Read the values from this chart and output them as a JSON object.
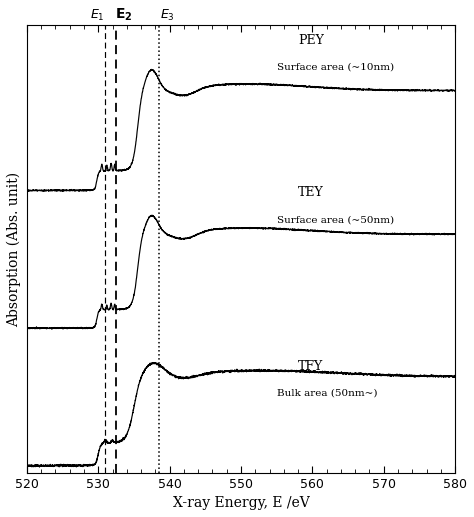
{
  "title": "",
  "xlabel": "X-ray Energy, E /eV",
  "ylabel": "Absorption (Abs. unit)",
  "xlim": [
    520,
    580
  ],
  "x_ticks": [
    520,
    530,
    540,
    550,
    560,
    570,
    580
  ],
  "E1": 531.0,
  "E2": 532.5,
  "E3": 538.5,
  "labels": [
    [
      "PEY",
      "Surface area (~10nm)"
    ],
    [
      "TEY",
      "Surface area (~50nm)"
    ],
    [
      "TFY",
      "Bulk area (50nm~)"
    ]
  ],
  "offsets": [
    2.0,
    1.0,
    0.0
  ],
  "line_color": "#000000",
  "background_color": "#ffffff"
}
